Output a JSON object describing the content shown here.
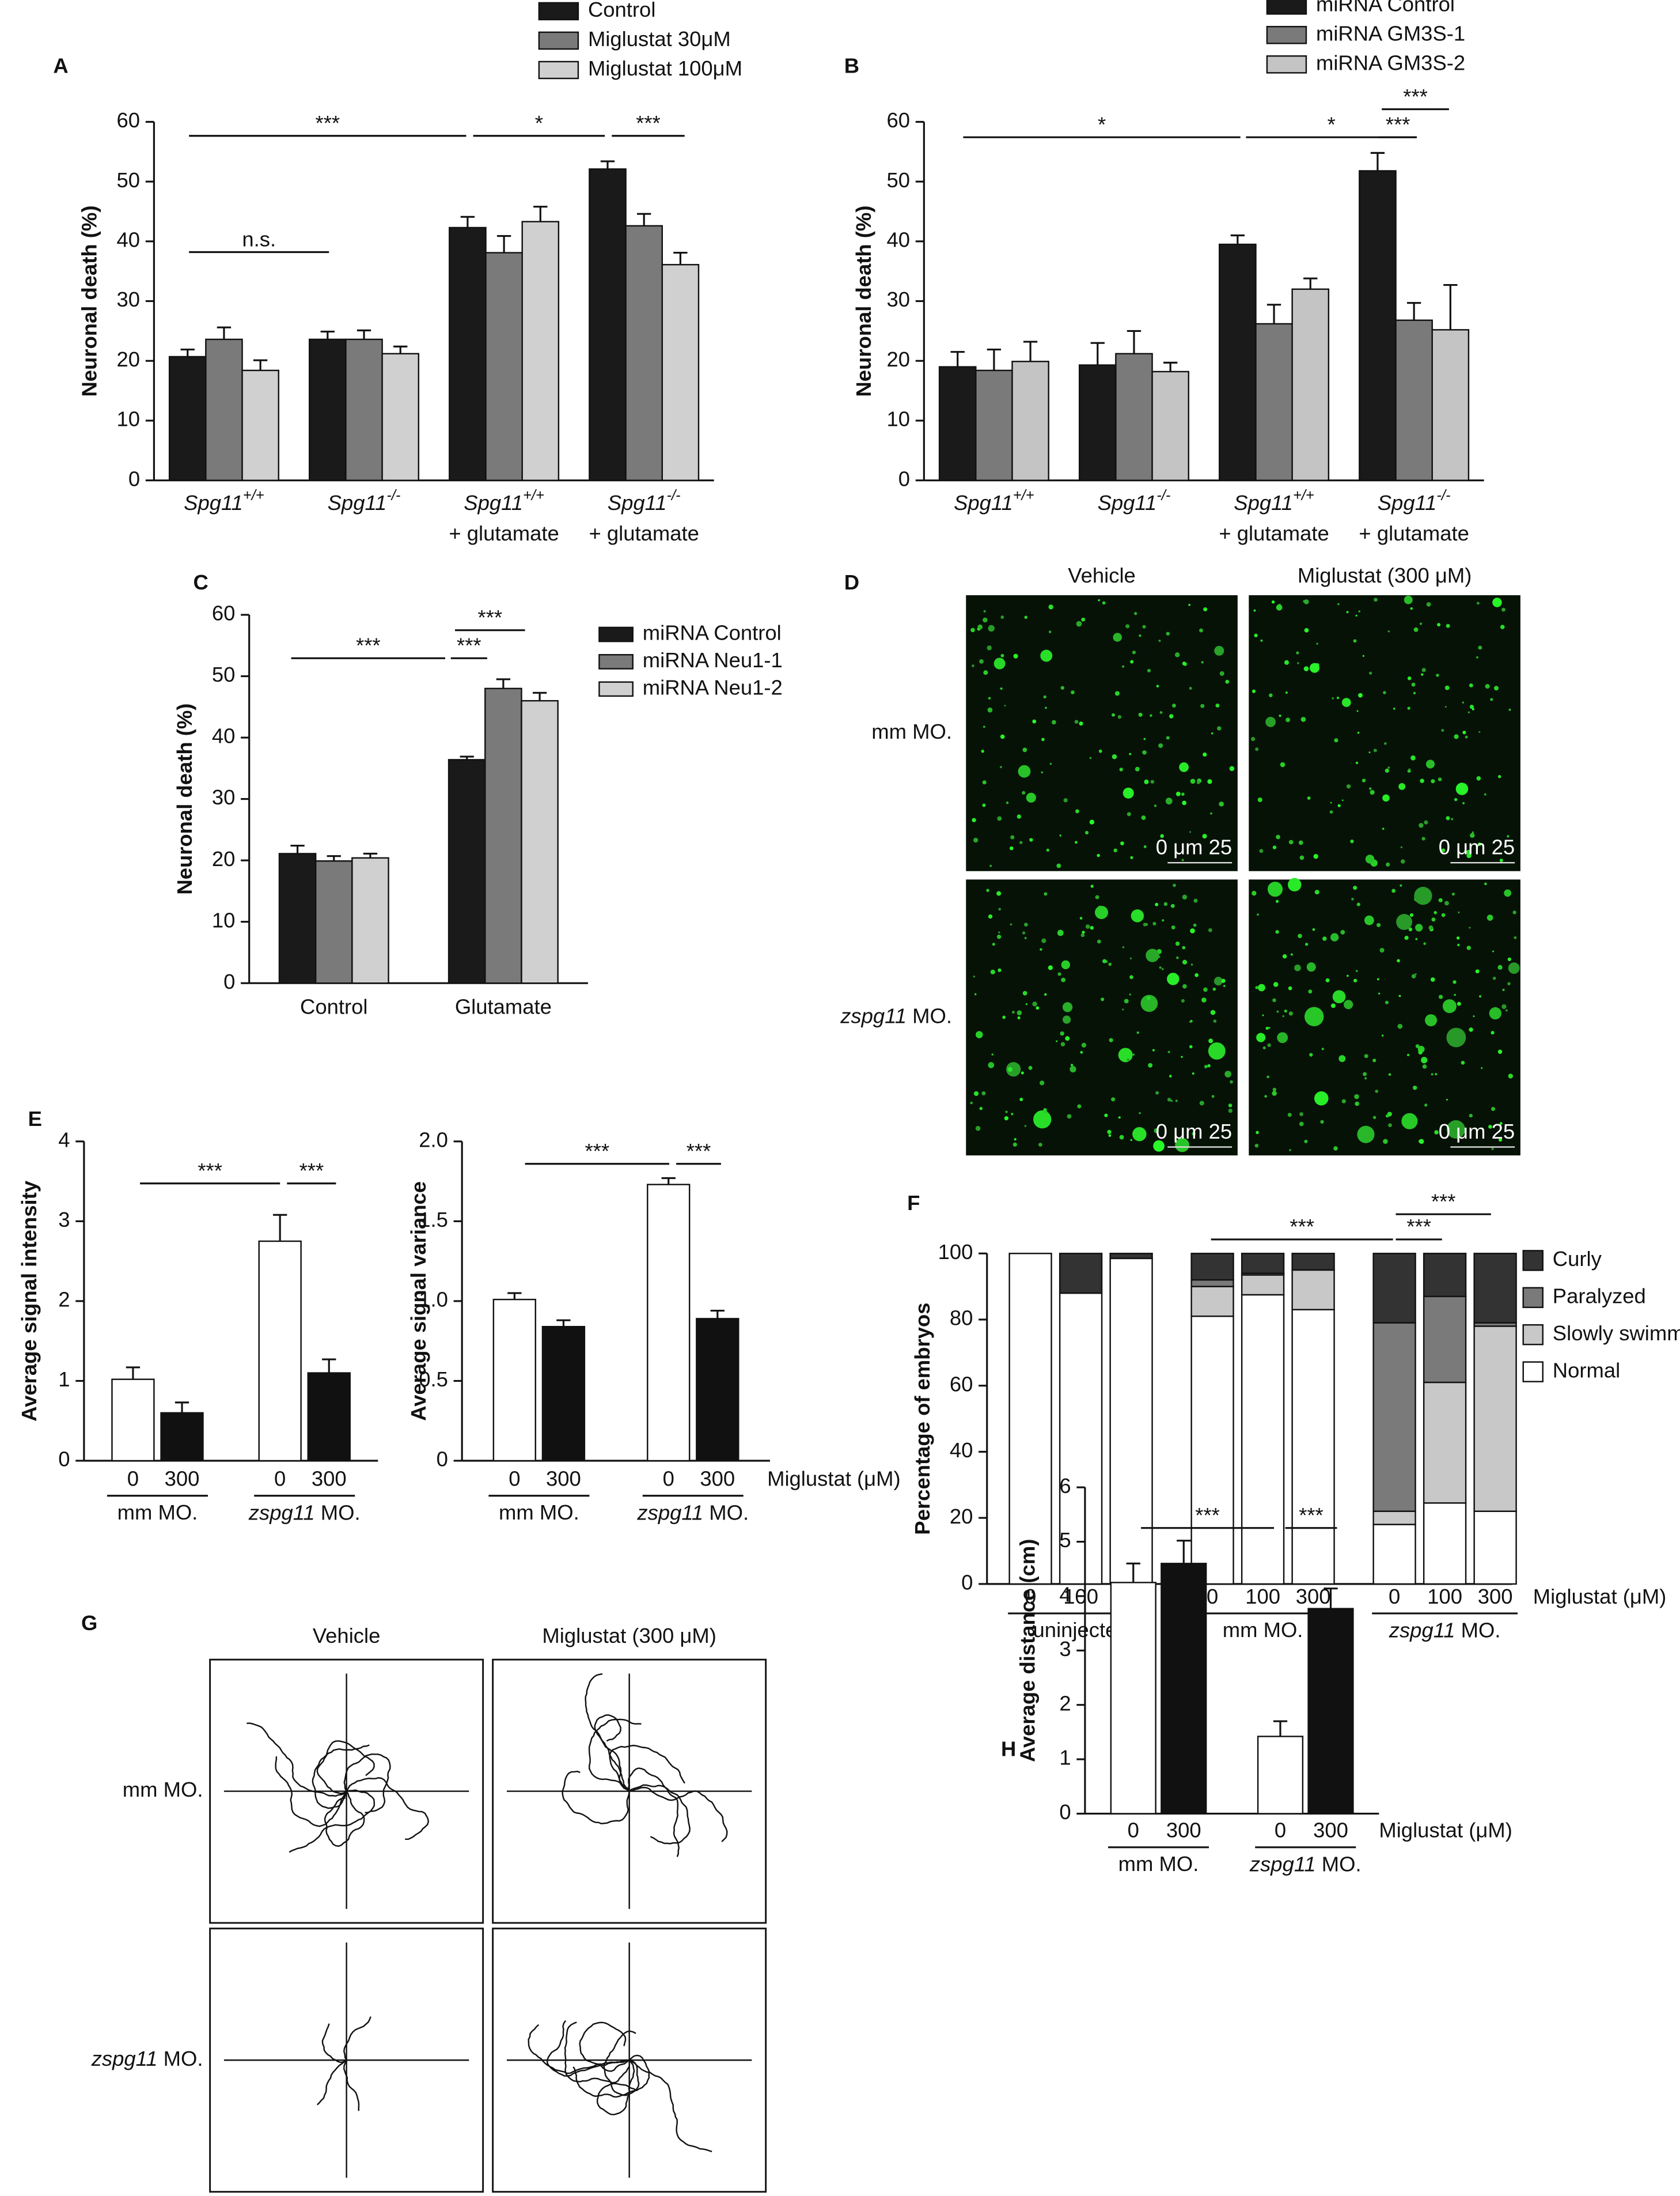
{
  "chart_data": [
    {
      "type": "bar",
      "panel": "A",
      "y_label": "Neuronal death (%)",
      "categories": [
        [
          "Spg11+/+"
        ],
        [
          "Spg11-/-"
        ],
        [
          "Spg11+/+",
          "+ glutamate"
        ],
        [
          "Spg11-/-",
          "+ glutamate"
        ]
      ],
      "series": [
        {
          "name": "Control",
          "color": "#1a1a1a",
          "values": [
            20.7,
            23.6,
            42.3,
            52.1
          ],
          "errors": [
            1.2,
            1.3,
            1.8,
            1.3
          ]
        },
        {
          "name": "Miglustat 30μM",
          "color": "#7a7a7a",
          "values": [
            23.6,
            23.6,
            38.1,
            42.6
          ],
          "errors": [
            2.0,
            1.5,
            2.8,
            2.0
          ]
        },
        {
          "name": "Miglustat 100μM",
          "color": "#d0d0d0",
          "values": [
            18.4,
            21.2,
            43.3,
            36.1
          ],
          "errors": [
            1.7,
            1.2,
            2.5,
            2.0
          ]
        }
      ],
      "ylim": [
        0,
        60
      ],
      "yticks": [
        0,
        10,
        20,
        30,
        40,
        50,
        60
      ],
      "legend": "top-right",
      "annotations": [
        "***",
        "*",
        "***",
        "n.s."
      ]
    },
    {
      "type": "bar",
      "panel": "B",
      "y_label": "Neuronal death (%)",
      "categories": [
        [
          "Spg11+/+"
        ],
        [
          "Spg11-/-"
        ],
        [
          "Spg11+/+",
          "+ glutamate"
        ],
        [
          "Spg11-/-",
          "+ glutamate"
        ]
      ],
      "series": [
        {
          "name": "miRNA Control",
          "color": "#1a1a1a",
          "values": [
            19.0,
            19.3,
            39.5,
            51.8
          ],
          "errors": [
            2.5,
            3.7,
            1.5,
            3.0
          ]
        },
        {
          "name": "miRNA GM3S-1",
          "color": "#7a7a7a",
          "values": [
            18.4,
            21.2,
            26.2,
            26.8
          ],
          "errors": [
            3.5,
            3.8,
            3.2,
            2.9
          ]
        },
        {
          "name": "miRNA GM3S-2",
          "color": "#c4c4c4",
          "values": [
            19.9,
            18.2,
            32.0,
            25.2
          ],
          "errors": [
            3.3,
            1.5,
            1.8,
            7.5
          ]
        }
      ],
      "ylim": [
        0,
        60
      ],
      "yticks": [
        0,
        10,
        20,
        30,
        40,
        50,
        60
      ],
      "legend": "top-right",
      "annotations": [
        "*",
        "*",
        "***",
        "***"
      ]
    },
    {
      "type": "bar",
      "panel": "C",
      "y_label": "Neuronal death (%)",
      "categories": [
        "Control",
        "Glutamate"
      ],
      "series": [
        {
          "name": "miRNA Control",
          "color": "#1a1a1a",
          "values": [
            21.1,
            36.4
          ],
          "errors": [
            1.3,
            0.5
          ]
        },
        {
          "name": "miRNA Neu1-1",
          "color": "#7a7a7a",
          "values": [
            19.9,
            48.0
          ],
          "errors": [
            0.8,
            1.5
          ]
        },
        {
          "name": "miRNA Neu1-2",
          "color": "#d0d0d0",
          "values": [
            20.4,
            46.0
          ],
          "errors": [
            0.7,
            1.3
          ]
        }
      ],
      "ylim": [
        0,
        60
      ],
      "yticks": [
        0,
        10,
        20,
        30,
        40,
        50,
        60
      ],
      "legend": "top-right",
      "annotations": [
        "***",
        "***",
        "***"
      ]
    },
    {
      "type": "image",
      "panel": "D",
      "column_labels": [
        "Vehicle",
        "Miglustat (300 μM)"
      ],
      "row_labels": [
        "mm MO.",
        "zspg11 MO."
      ],
      "scale_label": "0   μm 25"
    },
    {
      "type": "bar",
      "panel": "E",
      "y_label": "Average signal intensity",
      "categories": [
        "mm MO.",
        "zspg11 MO."
      ],
      "series": [
        {
          "name": "0",
          "color": "#ffffff",
          "values": [
            1.02,
            2.75
          ],
          "errors": [
            0.15,
            0.33
          ]
        },
        {
          "name": "300",
          "color": "#111111",
          "values": [
            0.6,
            1.1
          ],
          "errors": [
            0.13,
            0.17
          ]
        }
      ],
      "ylim": [
        0,
        4
      ],
      "yticks": [
        0,
        1,
        2,
        3,
        4
      ],
      "annotations": [
        "***",
        "***"
      ]
    },
    {
      "type": "bar",
      "y_label": "Average signal variance",
      "x_label": "Miglustat (μM)",
      "categories": [
        "mm MO.",
        "zspg11 MO."
      ],
      "series": [
        {
          "name": "0",
          "color": "#ffffff",
          "values": [
            1.01,
            1.73
          ],
          "errors": [
            0.04,
            0.04
          ]
        },
        {
          "name": "300",
          "color": "#111111",
          "values": [
            0.84,
            0.89
          ],
          "errors": [
            0.04,
            0.05
          ]
        }
      ],
      "ylim": [
        0,
        2
      ],
      "yticks": [
        0,
        0.5,
        {
          "value": 1,
          "label": "1.0"
        },
        1.5,
        {
          "value": 2,
          "label": "2.0"
        }
      ],
      "annotations": [
        "***",
        "***"
      ]
    },
    {
      "type": "stacked_bar",
      "panel": "F",
      "y_label": "Percentage of embryos",
      "x_label": "Miglustat (μM)",
      "categories": [
        "0",
        "100",
        "300",
        "0",
        "100",
        "300",
        "0",
        "100",
        "300"
      ],
      "groups": [
        "uninjected",
        "mm MO.",
        "zspg11 MO."
      ],
      "series": [
        {
          "name": "Normal",
          "color": "#ffffff",
          "values": [
            100,
            88,
            98.5,
            81,
            87.5,
            83,
            18,
            24.5,
            22
          ]
        },
        {
          "name": "Slowly swimming",
          "color": "#c8c8c8",
          "values": [
            0,
            0,
            0,
            9,
            6,
            12,
            4,
            36.5,
            56
          ]
        },
        {
          "name": "Paralyzed",
          "color": "#7a7a7a",
          "values": [
            0,
            0,
            0,
            2,
            0.5,
            0,
            57,
            26,
            1
          ]
        },
        {
          "name": "Curly",
          "color": "#333333",
          "values": [
            0,
            12,
            1.5,
            8,
            6,
            5,
            21,
            13,
            21
          ]
        }
      ],
      "ylim": [
        0,
        100
      ],
      "yticks": [
        0,
        20,
        40,
        60,
        80,
        100
      ],
      "legend": "right",
      "annotations": [
        "***",
        "***",
        "***"
      ]
    },
    {
      "type": "trajectory",
      "panel": "G",
      "column_labels": [
        "Vehicle",
        "Miglustat (300 μM)"
      ],
      "row_labels": [
        "mm MO.",
        "zspg11 MO."
      ]
    },
    {
      "type": "bar",
      "panel": "H",
      "y_label": "Average distance (cm)",
      "x_label": "Miglustat (μM)",
      "categories": [
        "mm MO.",
        "zspg11 MO."
      ],
      "series": [
        {
          "name": "0",
          "color": "#ffffff",
          "values": [
            4.25,
            1.42
          ],
          "errors": [
            0.35,
            0.28
          ]
        },
        {
          "name": "300",
          "color": "#111111",
          "values": [
            4.6,
            3.77
          ],
          "errors": [
            0.42,
            0.37
          ]
        }
      ],
      "ylim": [
        0,
        6
      ],
      "yticks": [
        0,
        1,
        2,
        3,
        4,
        5,
        6
      ],
      "annotations": [
        "***",
        "***"
      ]
    }
  ]
}
